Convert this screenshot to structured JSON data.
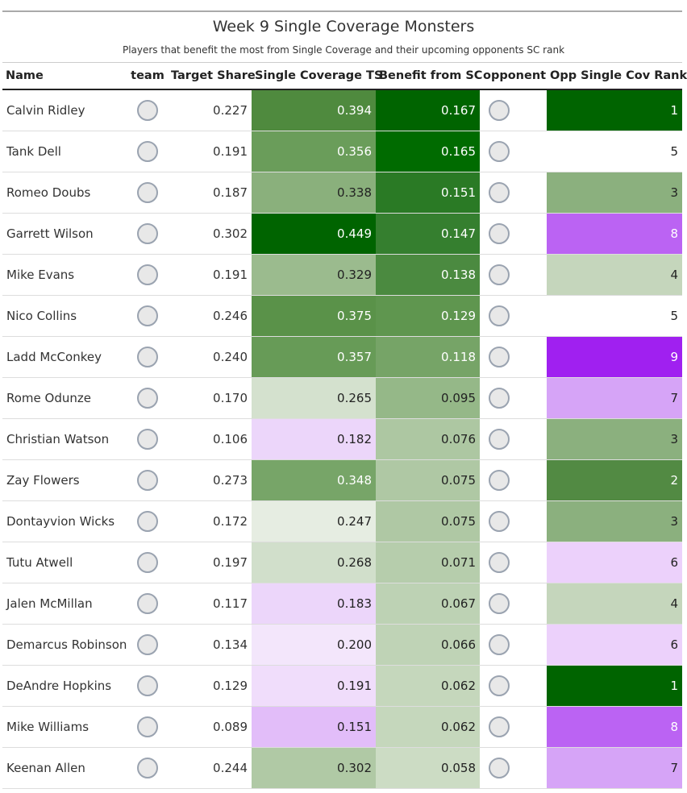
{
  "header": {
    "title": "Week 9 Single Coverage Monsters",
    "subtitle": "Players that benefit the most from Single Coverage and their upcoming opponents SC rank"
  },
  "table": {
    "columns": [
      "Name",
      "team",
      "Target Share",
      "Single Coverage TS",
      "Benefit from SC",
      "opponent",
      "Opp Single Cov Rank"
    ],
    "rows": [
      [
        "Calvin Ridley",
        "0.227",
        "0.394",
        "0.167",
        "1"
      ],
      [
        "Tank Dell",
        "0.191",
        "0.356",
        "0.165",
        "5"
      ],
      [
        "Romeo Doubs",
        "0.187",
        "0.338",
        "0.151",
        "3"
      ],
      [
        "Garrett Wilson",
        "0.302",
        "0.449",
        "0.147",
        "8"
      ],
      [
        "Mike Evans",
        "0.191",
        "0.329",
        "0.138",
        "4"
      ],
      [
        "Nico Collins",
        "0.246",
        "0.375",
        "0.129",
        "5"
      ],
      [
        "Ladd McConkey",
        "0.240",
        "0.357",
        "0.118",
        "9"
      ],
      [
        "Rome Odunze",
        "0.170",
        "0.265",
        "0.095",
        "7"
      ],
      [
        "Christian Watson",
        "0.106",
        "0.182",
        "0.076",
        "3"
      ],
      [
        "Zay Flowers",
        "0.273",
        "0.348",
        "0.075",
        "2"
      ],
      [
        "Dontayvion Wicks",
        "0.172",
        "0.247",
        "0.075",
        "3"
      ],
      [
        "Tutu Atwell",
        "0.197",
        "0.268",
        "0.071",
        "6"
      ],
      [
        "Jalen McMillan",
        "0.117",
        "0.183",
        "0.067",
        "4"
      ],
      [
        "Demarcus Robinson",
        "0.134",
        "0.200",
        "0.066",
        "6"
      ],
      [
        "DeAndre Hopkins",
        "0.129",
        "0.191",
        "0.062",
        "1"
      ],
      [
        "Mike Williams",
        "0.089",
        "0.151",
        "0.062",
        "8"
      ],
      [
        "Keenan Allen",
        "0.244",
        "0.302",
        "0.058",
        "7"
      ]
    ],
    "cell_colors": [
      [
        "#4f8a3e",
        "#006400",
        "#006400"
      ],
      [
        "#6a9d5a",
        "#006b00",
        "#ffffff"
      ],
      [
        "#8ab07c",
        "#2a7a25",
        "#8bb07e"
      ],
      [
        "#006400",
        "#357f2f",
        "#bb63f3"
      ],
      [
        "#9bbb8e",
        "#4b8a40",
        "#c5d6bc"
      ],
      [
        "#5a9249",
        "#5f964f",
        "#ffffff"
      ],
      [
        "#679b57",
        "#76a467",
        "#a020f0"
      ],
      [
        "#d4e1ce",
        "#95b888",
        "#d6a4f7"
      ],
      [
        "#ecd6fa",
        "#adc7a2",
        "#8bb07e"
      ],
      [
        "#77a568",
        "#afc8a4",
        "#528a43"
      ],
      [
        "#e6ede2",
        "#afc8a4",
        "#8bb07e"
      ],
      [
        "#d1dfcb",
        "#b6cdac",
        "#ecd1fb"
      ],
      [
        "#ecd6fa",
        "#bdd2b4",
        "#c5d6bc"
      ],
      [
        "#f3e6fb",
        "#bfd3b6",
        "#ecd1fb"
      ],
      [
        "#f0ddfb",
        "#c5d7bc",
        "#006400"
      ],
      [
        "#e2bdf9",
        "#c5d7bc",
        "#bb63f3"
      ],
      [
        "#b0c9a5",
        "#ccdcc4",
        "#d6a4f7"
      ]
    ]
  }
}
